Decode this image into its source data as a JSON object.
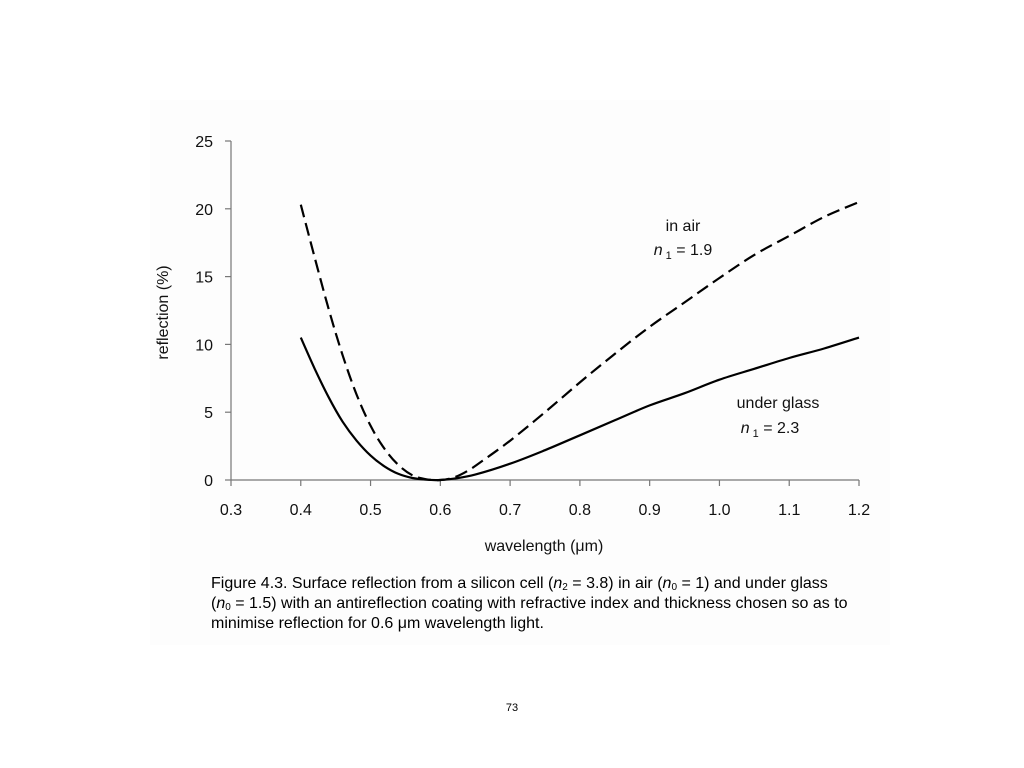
{
  "chart_data": {
    "type": "line",
    "xlabel": "wavelength (μm)",
    "ylabel": "reflection (%)",
    "xlim": [
      0.3,
      1.2
    ],
    "ylim": [
      0,
      25
    ],
    "x_ticks": [
      "0.3",
      "0.4",
      "0.5",
      "0.6",
      "0.7",
      "0.8",
      "0.9",
      "1.0",
      "1.1",
      "1.2"
    ],
    "y_ticks": [
      "0",
      "5",
      "10",
      "15",
      "20",
      "25"
    ],
    "grid": false,
    "series": [
      {
        "style": "dashed",
        "label_line1": "in air",
        "label_n": "n",
        "label_sub": "1",
        "label_value": " = 1.9",
        "points": [
          [
            0.4,
            20.3
          ],
          [
            0.42,
            16.4
          ],
          [
            0.44,
            12.6
          ],
          [
            0.46,
            9.2
          ],
          [
            0.48,
            6.3
          ],
          [
            0.5,
            4.0
          ],
          [
            0.52,
            2.3
          ],
          [
            0.54,
            1.1
          ],
          [
            0.56,
            0.35
          ],
          [
            0.58,
            0.05
          ],
          [
            0.6,
            0.0
          ],
          [
            0.62,
            0.2
          ],
          [
            0.64,
            0.7
          ],
          [
            0.66,
            1.4
          ],
          [
            0.7,
            2.9
          ],
          [
            0.75,
            5.0
          ],
          [
            0.8,
            7.2
          ],
          [
            0.85,
            9.3
          ],
          [
            0.9,
            11.3
          ],
          [
            0.95,
            13.1
          ],
          [
            1.0,
            14.9
          ],
          [
            1.05,
            16.6
          ],
          [
            1.1,
            18.0
          ],
          [
            1.15,
            19.4
          ],
          [
            1.2,
            20.5
          ]
        ]
      },
      {
        "style": "solid",
        "label_line1": "under glass",
        "label_n": "n",
        "label_sub": "1",
        "label_value": " = 2.3",
        "points": [
          [
            0.4,
            10.5
          ],
          [
            0.42,
            8.2
          ],
          [
            0.44,
            6.1
          ],
          [
            0.46,
            4.3
          ],
          [
            0.48,
            2.9
          ],
          [
            0.5,
            1.8
          ],
          [
            0.52,
            1.0
          ],
          [
            0.54,
            0.45
          ],
          [
            0.56,
            0.15
          ],
          [
            0.58,
            0.02
          ],
          [
            0.6,
            0.0
          ],
          [
            0.62,
            0.1
          ],
          [
            0.65,
            0.4
          ],
          [
            0.7,
            1.2
          ],
          [
            0.75,
            2.2
          ],
          [
            0.8,
            3.3
          ],
          [
            0.85,
            4.4
          ],
          [
            0.9,
            5.5
          ],
          [
            0.95,
            6.4
          ],
          [
            1.0,
            7.4
          ],
          [
            1.05,
            8.2
          ],
          [
            1.1,
            9.0
          ],
          [
            1.15,
            9.7
          ],
          [
            1.2,
            10.5
          ]
        ]
      }
    ]
  },
  "caption": {
    "p1": "Figure 4.3. Surface reflection from a silicon cell (",
    "v1": "n",
    "s1": "2",
    "p2": " = 3.8) in air (",
    "v2": "n",
    "s2": "0",
    "p3": " = 1) and under glass (",
    "v3": "n",
    "s3": "0",
    "p4": " = 1.5) with an antireflection coating with refractive index and thickness chosen so as to minimise reflection for 0.6 μm wavelength light."
  },
  "page_number": "73"
}
